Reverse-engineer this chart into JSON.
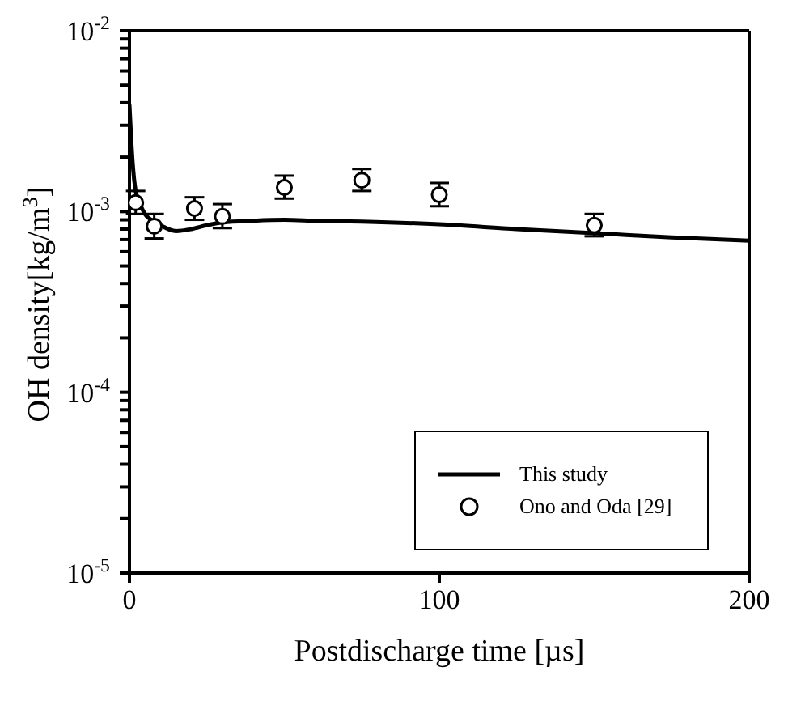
{
  "chart_data": {
    "type": "line",
    "xlabel": "Postdischarge time [µs]",
    "ylabel": "OH density[kg/m$^{3}$]",
    "log": "y",
    "xlim": [
      0,
      200
    ],
    "xticks": [
      0,
      100,
      200
    ],
    "ylim": [
      1e-05,
      0.01
    ],
    "yticks": [
      {
        "value": 1e-05,
        "label": "10$^{-5}$"
      },
      {
        "value": 2e-05,
        "label": null
      },
      {
        "value": 3e-05,
        "label": null
      },
      {
        "value": 4e-05,
        "label": null
      },
      {
        "value": 5e-05,
        "label": null
      },
      {
        "value": 6e-05,
        "label": null
      },
      {
        "value": 7e-05,
        "label": null
      },
      {
        "value": 8e-05,
        "label": null
      },
      {
        "value": 9e-05,
        "label": null
      },
      {
        "value": 0.0001,
        "label": "10$^{-4}$"
      },
      {
        "value": 0.0002,
        "label": null
      },
      {
        "value": 0.0003,
        "label": null
      },
      {
        "value": 0.0004,
        "label": null
      },
      {
        "value": 0.0005,
        "label": null
      },
      {
        "value": 0.0006,
        "label": null
      },
      {
        "value": 0.0007,
        "label": null
      },
      {
        "value": 0.0008,
        "label": null
      },
      {
        "value": 0.0009,
        "label": null
      },
      {
        "value": 0.001,
        "label": "10$^{-3}$"
      },
      {
        "value": 0.002,
        "label": null
      },
      {
        "value": 0.003,
        "label": null
      },
      {
        "value": 0.004,
        "label": null
      },
      {
        "value": 0.005,
        "label": null
      },
      {
        "value": 0.006,
        "label": null
      },
      {
        "value": 0.007,
        "label": null
      },
      {
        "value": 0.008,
        "label": null
      },
      {
        "value": 0.009,
        "label": null
      },
      {
        "value": 0.01,
        "label": "10$^{-2}$"
      }
    ],
    "grid": false,
    "legend": "bottom right",
    "series": [
      {
        "name": "This study",
        "type": "line",
        "color": "#000000",
        "marker": "none",
        "line_style": "solid",
        "x": [
          0,
          1,
          2,
          3,
          5,
          7,
          10,
          15,
          20,
          25,
          30,
          40,
          50,
          60,
          75,
          100,
          125,
          150,
          175,
          200
        ],
        "values": [
          0.0039,
          0.0019,
          0.0013,
          0.00115,
          0.00097,
          0.0009,
          0.00084,
          0.00078,
          0.0008,
          0.00084,
          0.00087,
          0.00089,
          0.0009,
          0.00089,
          0.00088,
          0.00085,
          0.0008,
          0.00076,
          0.00072,
          0.00069
        ]
      },
      {
        "name": "Ono and Oda [29]",
        "type": "scatter",
        "color": "#000000",
        "marker": "circle",
        "x": [
          2,
          8,
          21,
          30,
          50,
          75,
          100,
          150
        ],
        "values": [
          0.00112,
          0.00083,
          0.00104,
          0.00094,
          0.00136,
          0.00149,
          0.00124,
          0.00084
        ],
        "errors": [
          [
            0.00097,
            0.0013
          ],
          [
            0.00071,
            0.00097
          ],
          [
            0.0009,
            0.0012
          ],
          [
            0.00081,
            0.0011
          ],
          [
            0.00118,
            0.00158
          ],
          [
            0.0013,
            0.00172
          ],
          [
            0.00107,
            0.00144
          ],
          [
            0.00073,
            0.00097
          ]
        ]
      }
    ]
  }
}
